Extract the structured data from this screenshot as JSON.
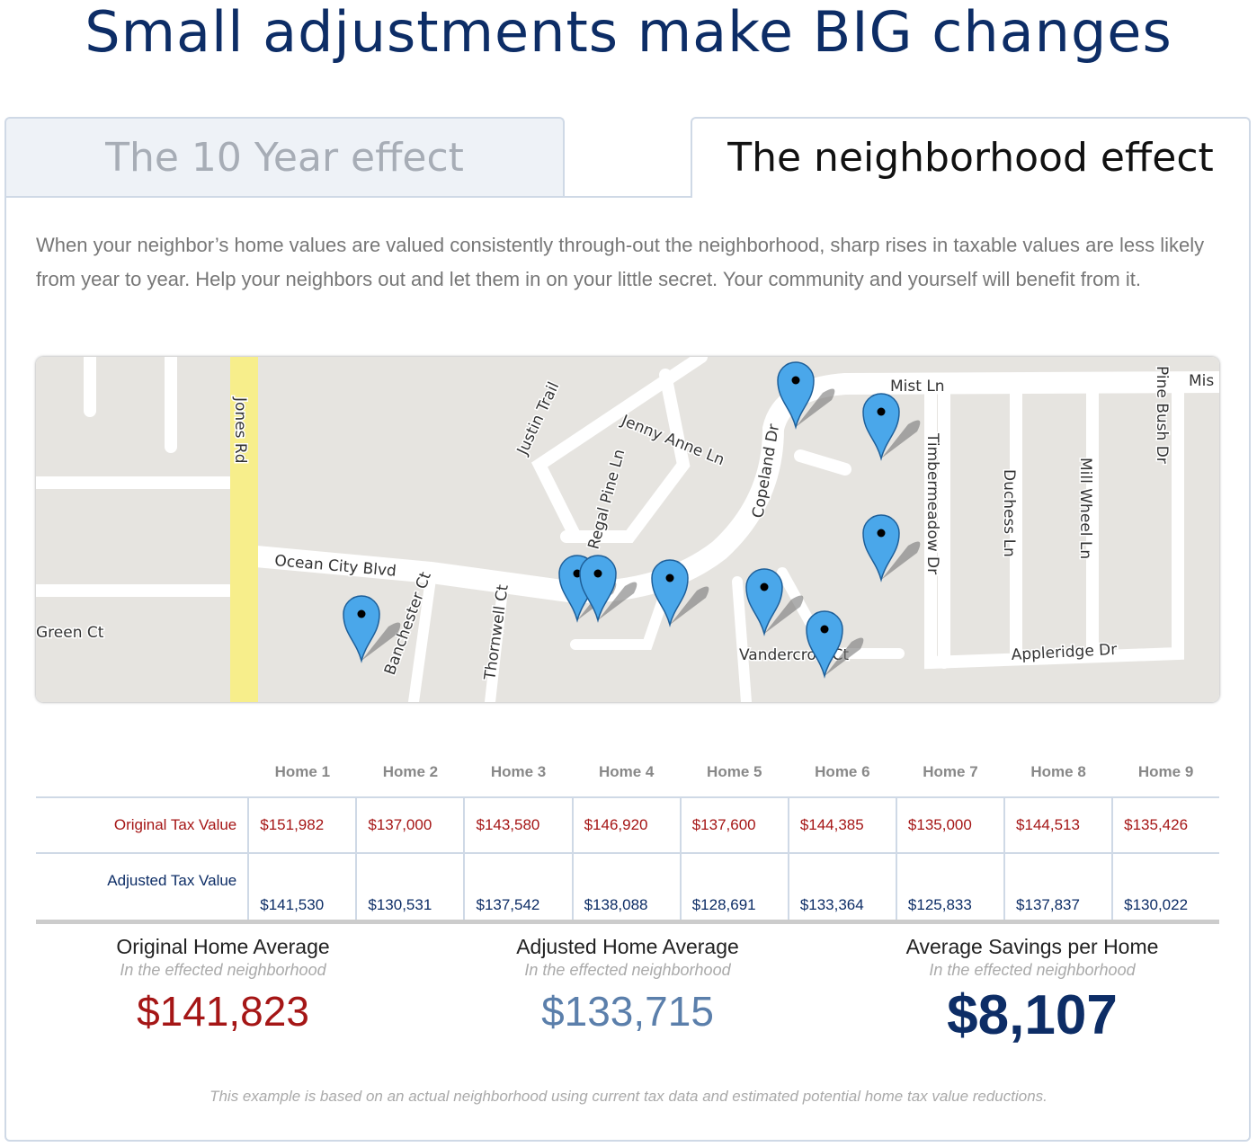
{
  "header": {
    "title": "Small adjustments make BIG changes"
  },
  "tabs": [
    "The 10 Year effect",
    "The neighborhood effect"
  ],
  "description": "When your neighbor’s home values are valued consistently through-out the neighborhood, sharp rises in taxable values are less likely from year to year. Help your neighbors out and let them in on your little secret. Your community and yourself will benefit from it.",
  "map": {
    "street_labels": [
      "Jones Rd",
      "Ocean City Blvd",
      "Justin Trail",
      "Jenny Anne Ln",
      "Regal Pine Ln",
      "Copeland Dr",
      "Mist Ln",
      "Mis",
      "Pine Bush Dr",
      "Timbermeadow Dr",
      "Duchess Ln",
      "Mill Wheel Ln",
      "Green Ct",
      "Banchester Ct",
      "Thornwell Ct",
      "Appleridge Dr",
      "Vandercroft Ct"
    ]
  },
  "table": {
    "header": [
      "Home 1",
      "Home 2",
      "Home 3",
      "Home 4",
      "Home 5",
      "Home 6",
      "Home 7",
      "Home 8",
      "Home 9"
    ],
    "rows": [
      [
        "Original Tax Value",
        "$151,982",
        "$137,000",
        "$143,580",
        "$146,920",
        "$137,600",
        "$144,385",
        "$135,000",
        "$144,513",
        "$135,426"
      ],
      [
        "Adjusted Tax Value",
        "$141,530",
        "$130,531",
        "$137,542",
        "$138,088",
        "$128,691",
        "$133,364",
        "$125,833",
        "$137,837",
        "$130,022"
      ]
    ]
  },
  "summary": [
    {
      "title": "Original Home Average",
      "subtitle": "In the effected neighborhood",
      "value": "$141,823"
    },
    {
      "title": "Adjusted Home Average",
      "subtitle": "In the effected neighborhood",
      "value": "$133,715"
    },
    {
      "title": "Average Savings per Home",
      "subtitle": "In the effected neighborhood",
      "value": "$8,107"
    }
  ],
  "footnote": "This example is based on an actual neighborhood using current tax data and estimated potential home tax value reductions."
}
